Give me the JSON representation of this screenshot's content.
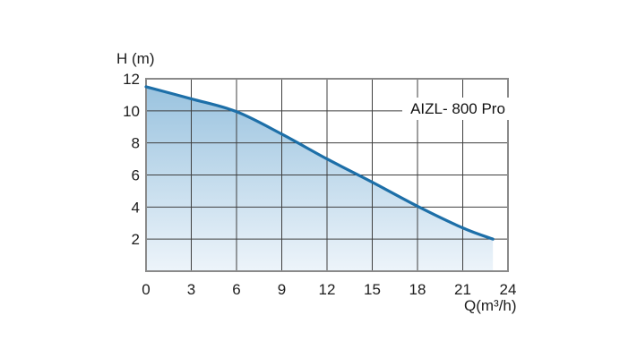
{
  "chart_data": {
    "type": "line",
    "title": "AIZL- 800 Pro",
    "xlabel": "Q(m³/h)",
    "ylabel": "H (m)",
    "xlim": [
      0,
      24
    ],
    "ylim": [
      0,
      12
    ],
    "x_ticks": [
      0,
      3,
      6,
      9,
      12,
      15,
      18,
      21,
      24
    ],
    "y_ticks": [
      2,
      4,
      6,
      8,
      10,
      12
    ],
    "grid": true,
    "legend_position": "inside-top-right",
    "series": [
      {
        "name": "AIZL- 800 Pro",
        "x": [
          0,
          3,
          6,
          9,
          12,
          15,
          18,
          21,
          23
        ],
        "y": [
          11.5,
          10.75,
          9.95,
          8.55,
          7.0,
          5.55,
          4.05,
          2.7,
          2.0
        ]
      }
    ],
    "colors": {
      "curve": "#1d6fa8",
      "area_top": "#9ac3df",
      "area_bottom": "#edf4fa",
      "gridline": "#3f3f3f",
      "border": "#8a8a8a",
      "text": "#1c1c1c",
      "background": "#ffffff"
    }
  }
}
